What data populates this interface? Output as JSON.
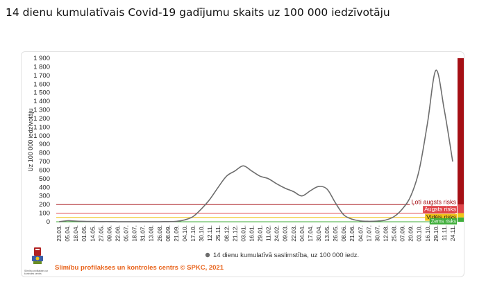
{
  "page": {
    "title": "14 dienu kumulatīvais Covid-19 gadījumu skaits uz 100 000 iedzīvotāju",
    "credit": "Slimību profilakses un kontroles centrs © SPKC, 2021",
    "logo_caption": "Slimību profilakses un kontroles centrs"
  },
  "colors": {
    "line": "#6d6d6d",
    "very_high": "#a50f15",
    "high": "#e0454a",
    "medium": "#f0c419",
    "low": "#3fae3a",
    "credit": "#e8631b"
  },
  "chart_data": {
    "type": "line",
    "title": "",
    "xlabel": "",
    "ylabel": "Uz 100 000 iedzīvotāju",
    "ylim": [
      0,
      1900
    ],
    "ytick_labels": [
      "0",
      "100",
      "200",
      "300",
      "400",
      "500",
      "600",
      "700",
      "800",
      "900",
      "1 000",
      "1 100",
      "1 200",
      "1 300",
      "1 400",
      "1 500",
      "1 600",
      "1 700",
      "1 800",
      "1 900"
    ],
    "grid": false,
    "legend_position": "bottom",
    "categories": [
      "23.03.",
      "05.04.",
      "18.04.",
      "01.05.",
      "14.05.",
      "27.05.",
      "09.06.",
      "22.06.",
      "05.07.",
      "18.07.",
      "31.07.",
      "13.08.",
      "26.08.",
      "08.09.",
      "21.09.",
      "04.10.",
      "17.10.",
      "30.10.",
      "12.11.",
      "25.11.",
      "08.12.",
      "21.12.",
      "03.01.",
      "16.01.",
      "29.01.",
      "11.02.",
      "24.02.",
      "09.03.",
      "22.03.",
      "04.04.",
      "17.04.",
      "30.04.",
      "13.05.",
      "26.05.",
      "08.06.",
      "21.06.",
      "04.07.",
      "17.07.",
      "30.07.",
      "12.08.",
      "25.08.",
      "07.09.",
      "20.09.",
      "03.10.",
      "16.10.",
      "29.10.",
      "11.11.",
      "24.11."
    ],
    "series": [
      {
        "name": "14 dienu kumulatīvā saslimstība, uz 100 000 iedz.",
        "values": [
          0,
          12,
          8,
          5,
          3,
          2,
          2,
          1,
          1,
          1,
          1,
          1,
          1,
          2,
          5,
          22,
          60,
          150,
          260,
          400,
          530,
          590,
          650,
          590,
          530,
          500,
          440,
          390,
          350,
          300,
          360,
          410,
          380,
          220,
          80,
          30,
          10,
          5,
          8,
          20,
          60,
          150,
          300,
          600,
          1150,
          1760,
          1300,
          700
        ]
      }
    ],
    "risk_levels": [
      {
        "label": "Ļoti augsts risks",
        "from": 200,
        "to": 1900,
        "color": "#a50f15"
      },
      {
        "label": "Augsts risks",
        "from": 100,
        "to": 200,
        "color": "#e0454a"
      },
      {
        "label": "Vidējs risks",
        "from": 50,
        "to": 100,
        "color": "#f0c419"
      },
      {
        "label": "Zems risks",
        "from": 0,
        "to": 50,
        "color": "#3fae3a"
      }
    ]
  }
}
